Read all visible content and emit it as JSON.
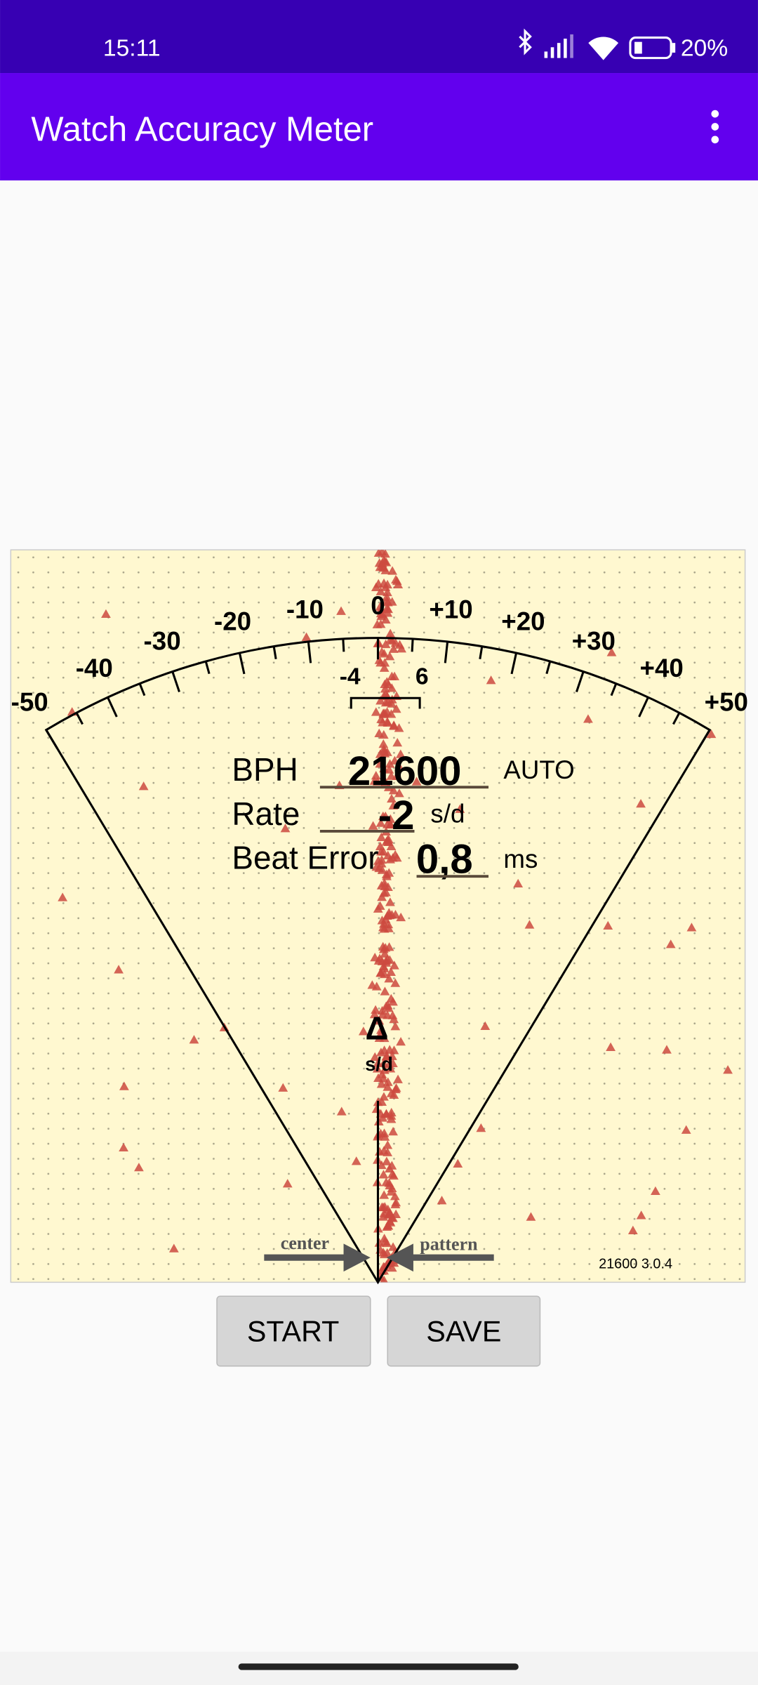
{
  "status_bar": {
    "time": "15:11",
    "battery": "20%"
  },
  "app_bar": {
    "title": "Watch Accuracy Meter"
  },
  "dial": {
    "scale_labels": [
      "-50",
      "-40",
      "-30",
      "-20",
      "-10",
      "0",
      "+10",
      "+20",
      "+30",
      "+40",
      "+50"
    ],
    "window_labels": [
      "-4",
      "6"
    ],
    "readout": {
      "bph_label": "BPH",
      "bph": "21600",
      "mode": "AUTO",
      "rate_label": "Rate",
      "rate": "-2",
      "rate_unit": "s/d",
      "beat_error_label": "Beat Error",
      "beat_error": "0,8",
      "beat_error_unit": "ms"
    },
    "needle": {
      "symbol": "Δ",
      "unit": "s/d"
    },
    "arrows": {
      "center": "center",
      "pattern": "pattern"
    },
    "version": "21600 3.0.4"
  },
  "buttons": [
    "START",
    "SAVE"
  ]
}
